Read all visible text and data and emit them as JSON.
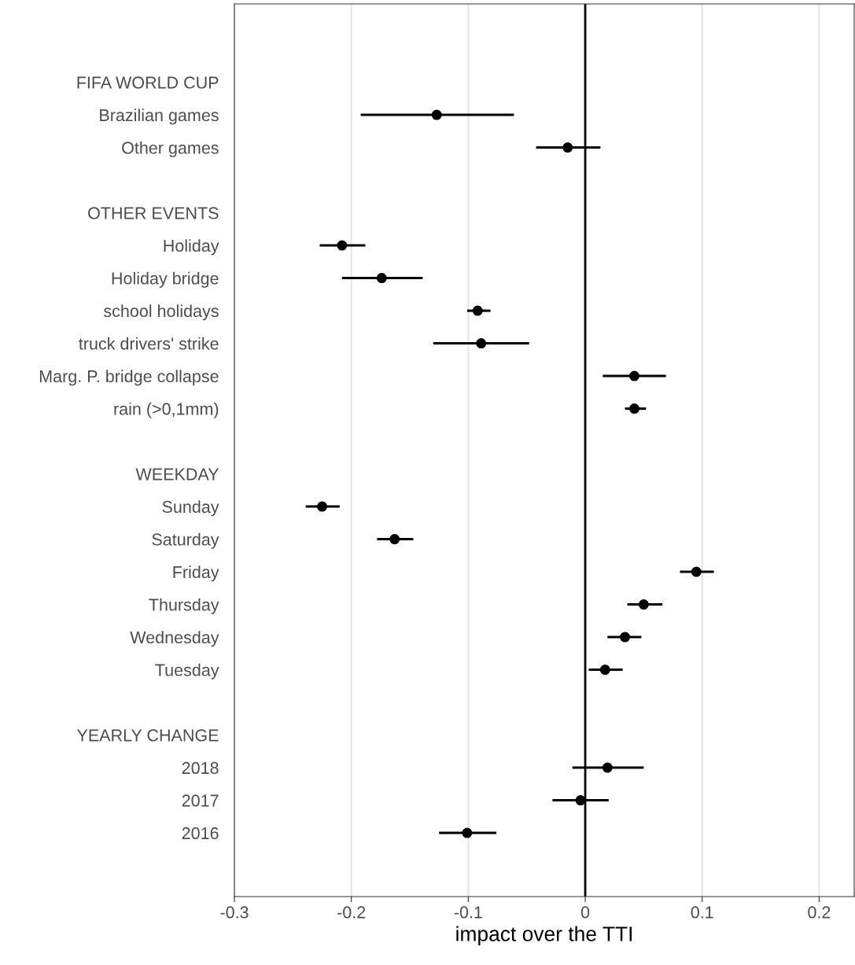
{
  "chart_data": {
    "type": "scatter",
    "orientation": "horizontal",
    "xlabel": "impact over the TTI",
    "categories": [
      null,
      "FIFA WORLD CUP",
      "Brazilian games",
      "Other games",
      null,
      "OTHER EVENTS",
      "Holiday",
      "Holiday bridge",
      "school holidays",
      "truck drivers' strike",
      "Marg. P. bridge collapse",
      "rain (>0,1mm)",
      null,
      "WEEKDAY",
      "Sunday",
      "Saturday",
      "Friday",
      "Thursday",
      "Wednesday",
      "Tuesday",
      null,
      "YEARLY CHANGE",
      "2018",
      "2017",
      "2016",
      null
    ],
    "values": [
      null,
      null,
      -0.127,
      -0.015,
      null,
      null,
      -0.208,
      -0.174,
      -0.092,
      -0.089,
      0.042,
      0.042,
      null,
      null,
      -0.225,
      -0.163,
      0.095,
      0.05,
      0.034,
      0.017,
      null,
      null,
      0.019,
      -0.004,
      -0.101,
      null
    ],
    "errors": [
      null,
      null,
      [
        -0.192,
        -0.061
      ],
      [
        -0.042,
        0.013
      ],
      null,
      null,
      [
        -0.227,
        -0.188
      ],
      [
        -0.208,
        -0.139
      ],
      [
        -0.101,
        -0.081
      ],
      [
        -0.13,
        -0.048
      ],
      [
        0.015,
        0.069
      ],
      [
        0.034,
        0.052
      ],
      null,
      null,
      [
        -0.239,
        -0.21
      ],
      [
        -0.178,
        -0.147
      ],
      [
        0.081,
        0.11
      ],
      [
        0.036,
        0.066
      ],
      [
        0.019,
        0.048
      ],
      [
        0.003,
        0.032
      ],
      null,
      null,
      [
        -0.011,
        0.05
      ],
      [
        -0.028,
        0.02
      ],
      [
        -0.125,
        -0.076
      ],
      null
    ],
    "color": "#000000",
    "marker": "circle",
    "xlim": [
      -0.3,
      0.23
    ],
    "xticks": [
      -0.3,
      -0.2,
      -0.1,
      0,
      0.1,
      0.2
    ],
    "ref_lines": [
      {
        "axis": "x",
        "value": 0,
        "color": "#000000"
      }
    ],
    "grid": "x"
  }
}
